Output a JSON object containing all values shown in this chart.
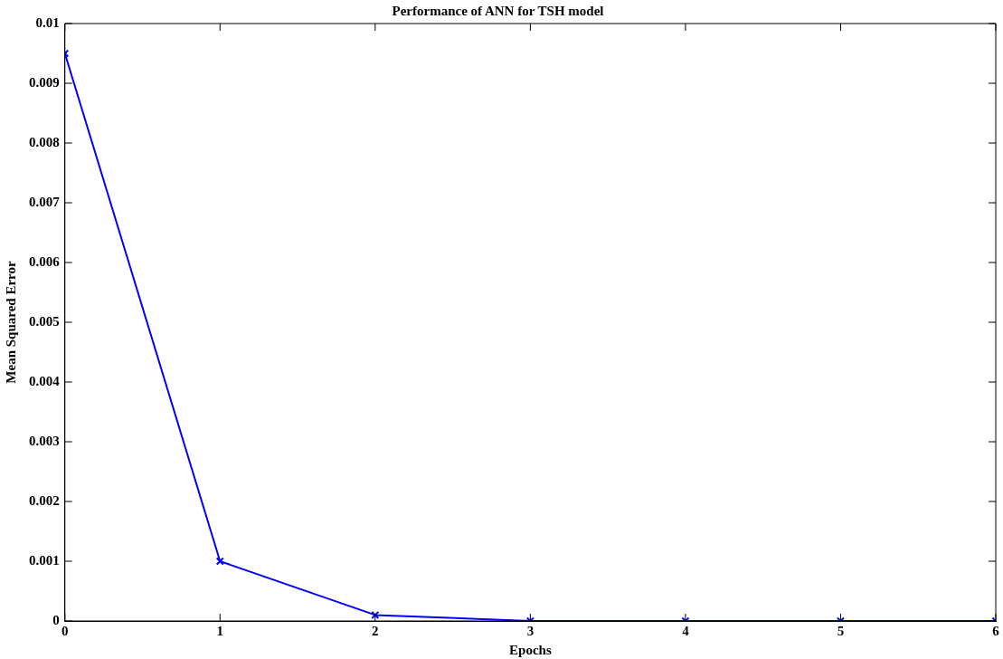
{
  "chart_data": {
    "type": "line",
    "title": "Performance of ANN for TSH model",
    "xlabel": "Epochs",
    "ylabel": "Mean Squared Error",
    "x": [
      0,
      1,
      2,
      3,
      4,
      5,
      6
    ],
    "series": [
      {
        "color": "#0000ff",
        "values": [
          0.0095,
          0.001,
          0.0001,
          0,
          0,
          0,
          0
        ]
      }
    ],
    "xlim": [
      0,
      6
    ],
    "xticks": [
      0,
      1,
      2,
      3,
      4,
      5,
      6
    ],
    "ylim": [
      0,
      0.01
    ],
    "yticks": [
      0,
      0.001,
      0.002,
      0.003,
      0.004,
      0.005,
      0.006,
      0.007,
      0.008,
      0.009,
      0.01
    ],
    "grid": false,
    "legend": false,
    "marker": "cross",
    "line_style": "solid"
  }
}
